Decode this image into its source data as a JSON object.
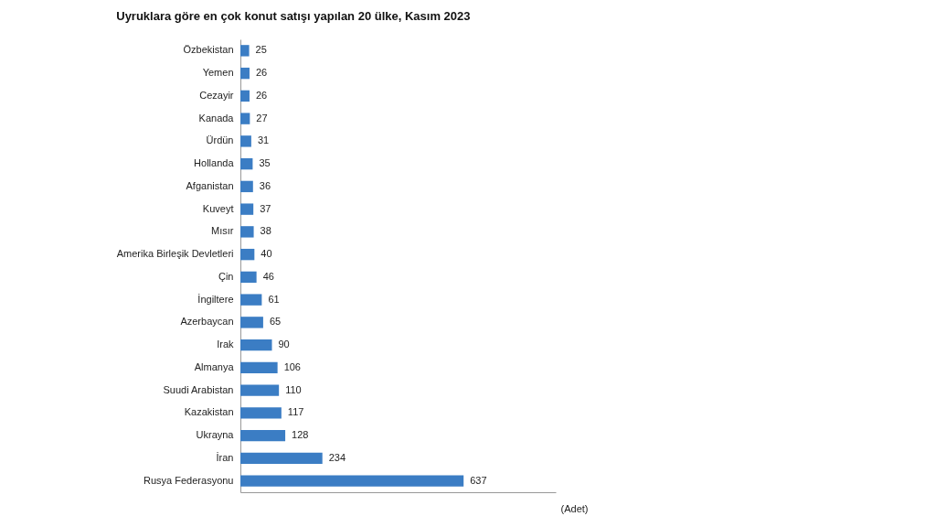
{
  "chart_data": {
    "type": "bar",
    "orientation": "horizontal",
    "title": "Uyruklara göre en çok konut satışı yapılan 20 ülke, Kasım 2023",
    "xlabel": "(Adet)",
    "categories": [
      "Özbekistan",
      "Yemen",
      "Cezayir",
      "Kanada",
      "Ürdün",
      "Hollanda",
      "Afganistan",
      "Kuveyt",
      "Mısır",
      "Amerika Birleşik Devletleri",
      "Çin",
      "İngiltere",
      "Azerbaycan",
      "Irak",
      "Almanya",
      "Suudi Arabistan",
      "Kazakistan",
      "Ukrayna",
      "İran",
      "Rusya Federasyonu"
    ],
    "values": [
      25,
      26,
      26,
      27,
      31,
      35,
      36,
      37,
      38,
      40,
      46,
      61,
      65,
      90,
      106,
      110,
      117,
      128,
      234,
      637
    ],
    "color": "#3b7dc4",
    "xlim": [
      0,
      900
    ],
    "data_labels": true
  }
}
